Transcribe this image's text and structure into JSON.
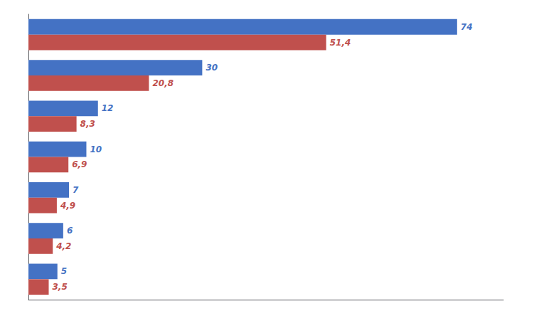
{
  "chart_data": {
    "type": "bar",
    "orientation": "horizontal",
    "categories": [
      null,
      null,
      null,
      null,
      null,
      null,
      null
    ],
    "series": [
      {
        "color": "#4472C4",
        "values": [
          74,
          30,
          12,
          10,
          7,
          6,
          5
        ]
      },
      {
        "color": "#C0504D",
        "values": [
          51.4,
          20.8,
          8.3,
          6.9,
          4.9,
          4.2,
          3.5
        ],
        "value_labels": [
          "51,4",
          "20,8",
          "8,3",
          "6,9",
          "4,9",
          "4,2",
          "3,5"
        ]
      }
    ],
    "xlim": [
      0,
      82
    ],
    "data_labels": true,
    "tick_labels": false,
    "grid": false
  }
}
